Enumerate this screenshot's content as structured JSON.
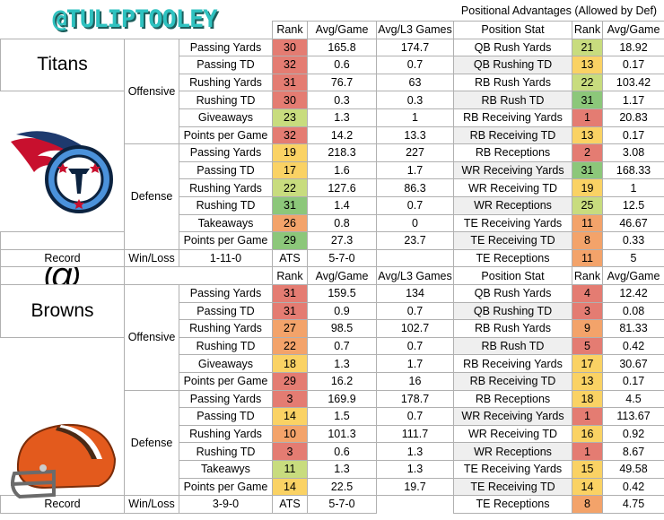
{
  "handle": "@TULIPTOOLEY",
  "header_top": {
    "rank": "Rank",
    "avg": "Avg/Game",
    "l3": "Avg/L3 Games",
    "pos_title": "Positional Advantages (Allowed by Def)"
  },
  "header_mid": {
    "rank": "Rank",
    "avg": "Avg/Game",
    "l3": "Avg/L3 Games",
    "pos": "Position Stat",
    "pos_rank": "Rank",
    "pos_avg": "Avg/Game"
  },
  "header_top_pos": {
    "pos": "Position Stat",
    "pos_rank": "Rank",
    "pos_avg": "Avg/Game"
  },
  "at_symbol": "@",
  "colors": {
    "red": "#e47c72",
    "orange": "#f3a36a",
    "yellow": "#fad264",
    "lightgreen": "#c8dc7e",
    "green": "#8cc77a"
  },
  "teams": [
    {
      "name": "Titans",
      "logo": "titans-logo",
      "sections": [
        {
          "label": "Offensive",
          "rows": [
            {
              "stat": "Passing Yards",
              "rank": "30",
              "color": "red",
              "avg": "165.8",
              "l3": "174.7"
            },
            {
              "stat": "Passing TD",
              "rank": "32",
              "color": "red",
              "avg": "0.6",
              "l3": "0.7"
            },
            {
              "stat": "Rushing Yards",
              "rank": "31",
              "color": "red",
              "avg": "76.7",
              "l3": "63"
            },
            {
              "stat": "Rushing TD",
              "rank": "30",
              "color": "red",
              "avg": "0.3",
              "l3": "0.3"
            },
            {
              "stat": "Giveaways",
              "rank": "23",
              "color": "lightgreen",
              "avg": "1.3",
              "l3": "1"
            },
            {
              "stat": "Points per Game",
              "rank": "32",
              "color": "red",
              "avg": "14.2",
              "l3": "13.3"
            }
          ]
        },
        {
          "label": "Defense",
          "rows": [
            {
              "stat": "Passing Yards",
              "rank": "19",
              "color": "yellow",
              "avg": "218.3",
              "l3": "227"
            },
            {
              "stat": "Passing TD",
              "rank": "17",
              "color": "yellow",
              "avg": "1.6",
              "l3": "1.7"
            },
            {
              "stat": "Rushing Yards",
              "rank": "22",
              "color": "lightgreen",
              "avg": "127.6",
              "l3": "86.3"
            },
            {
              "stat": "Rushing TD",
              "rank": "31",
              "color": "green",
              "avg": "1.4",
              "l3": "0.7"
            },
            {
              "stat": "Takeaways",
              "rank": "26",
              "color": "orange",
              "avg": "0.8",
              "l3": "0"
            },
            {
              "stat": "Points per Game",
              "rank": "29",
              "color": "green",
              "avg": "27.3",
              "l3": "23.7"
            }
          ]
        }
      ],
      "record": {
        "label": "Record",
        "stat": "Win/Loss",
        "value": "1-11-0",
        "ats_label": "ATS",
        "ats": "5-7-0"
      },
      "positional": [
        {
          "stat": "QB Rush Yards",
          "rank": "21",
          "color": "lightgreen",
          "avg": "18.92"
        },
        {
          "stat": "QB Rushing TD",
          "rank": "13",
          "color": "yellow",
          "avg": "0.17"
        },
        {
          "stat": "RB Rush Yards",
          "rank": "22",
          "color": "lightgreen",
          "avg": "103.42"
        },
        {
          "stat": "RB Rush TD",
          "rank": "31",
          "color": "green",
          "avg": "1.17"
        },
        {
          "stat": "RB Receiving Yards",
          "rank": "1",
          "color": "red",
          "avg": "20.83"
        },
        {
          "stat": "RB Receiving TD",
          "rank": "13",
          "color": "yellow",
          "avg": "0.17"
        },
        {
          "stat": "RB Receptions",
          "rank": "2",
          "color": "red",
          "avg": "3.08"
        },
        {
          "stat": "WR Receiving Yards",
          "rank": "31",
          "color": "green",
          "avg": "168.33"
        },
        {
          "stat": "WR Receiving TD",
          "rank": "19",
          "color": "yellow",
          "avg": "1"
        },
        {
          "stat": "WR Receptions",
          "rank": "25",
          "color": "lightgreen",
          "avg": "12.5"
        },
        {
          "stat": "TE Receiving Yards",
          "rank": "11",
          "color": "orange",
          "avg": "46.67"
        },
        {
          "stat": "TE Receiving TD",
          "rank": "8",
          "color": "orange",
          "avg": "0.33"
        },
        {
          "stat": "TE Receptions",
          "rank": "11",
          "color": "orange",
          "avg": "5"
        }
      ]
    },
    {
      "name": "Browns",
      "logo": "browns-helmet-logo",
      "sections": [
        {
          "label": "Offensive",
          "rows": [
            {
              "stat": "Passing Yards",
              "rank": "31",
              "color": "red",
              "avg": "159.5",
              "l3": "134"
            },
            {
              "stat": "Passing TD",
              "rank": "31",
              "color": "red",
              "avg": "0.9",
              "l3": "0.7"
            },
            {
              "stat": "Rushing Yards",
              "rank": "27",
              "color": "orange",
              "avg": "98.5",
              "l3": "102.7"
            },
            {
              "stat": "Rushing TD",
              "rank": "22",
              "color": "orange",
              "avg": "0.7",
              "l3": "0.7"
            },
            {
              "stat": "Giveaways",
              "rank": "18",
              "color": "yellow",
              "avg": "1.3",
              "l3": "1.7"
            },
            {
              "stat": "Points per Game",
              "rank": "29",
              "color": "red",
              "avg": "16.2",
              "l3": "16"
            }
          ]
        },
        {
          "label": "Defense",
          "rows": [
            {
              "stat": "Passing Yards",
              "rank": "3",
              "color": "red",
              "avg": "169.9",
              "l3": "178.7"
            },
            {
              "stat": "Passing TD",
              "rank": "14",
              "color": "yellow",
              "avg": "1.5",
              "l3": "0.7"
            },
            {
              "stat": "Rushing Yards",
              "rank": "10",
              "color": "orange",
              "avg": "101.3",
              "l3": "111.7"
            },
            {
              "stat": "Rushing TD",
              "rank": "3",
              "color": "red",
              "avg": "0.6",
              "l3": "1.3"
            },
            {
              "stat": "Takeawys",
              "rank": "11",
              "color": "lightgreen",
              "avg": "1.3",
              "l3": "1.3"
            },
            {
              "stat": "Points per Game",
              "rank": "14",
              "color": "yellow",
              "avg": "22.5",
              "l3": "19.7"
            }
          ]
        }
      ],
      "record": {
        "label": "Record",
        "stat": "Win/Loss",
        "value": "3-9-0",
        "ats_label": "ATS",
        "ats": "5-7-0"
      },
      "positional": [
        {
          "stat": "QB Rush Yards",
          "rank": "4",
          "color": "red",
          "avg": "12.42"
        },
        {
          "stat": "QB Rushing TD",
          "rank": "3",
          "color": "red",
          "avg": "0.08"
        },
        {
          "stat": "RB Rush Yards",
          "rank": "9",
          "color": "orange",
          "avg": "81.33"
        },
        {
          "stat": "RB Rush TD",
          "rank": "5",
          "color": "red",
          "avg": "0.42"
        },
        {
          "stat": "RB Receiving Yards",
          "rank": "17",
          "color": "yellow",
          "avg": "30.67"
        },
        {
          "stat": "RB Receiving TD",
          "rank": "13",
          "color": "yellow",
          "avg": "0.17"
        },
        {
          "stat": "RB Receptions",
          "rank": "18",
          "color": "yellow",
          "avg": "4.5"
        },
        {
          "stat": "WR Receiving Yards",
          "rank": "1",
          "color": "red",
          "avg": "113.67"
        },
        {
          "stat": "WR Receiving TD",
          "rank": "16",
          "color": "yellow",
          "avg": "0.92"
        },
        {
          "stat": "WR Receptions",
          "rank": "1",
          "color": "red",
          "avg": "8.67"
        },
        {
          "stat": "TE Receiving Yards",
          "rank": "15",
          "color": "yellow",
          "avg": "49.58"
        },
        {
          "stat": "TE Receiving TD",
          "rank": "14",
          "color": "yellow",
          "avg": "0.42"
        },
        {
          "stat": "TE Receptions",
          "rank": "8",
          "color": "orange",
          "avg": "4.75"
        }
      ]
    }
  ]
}
